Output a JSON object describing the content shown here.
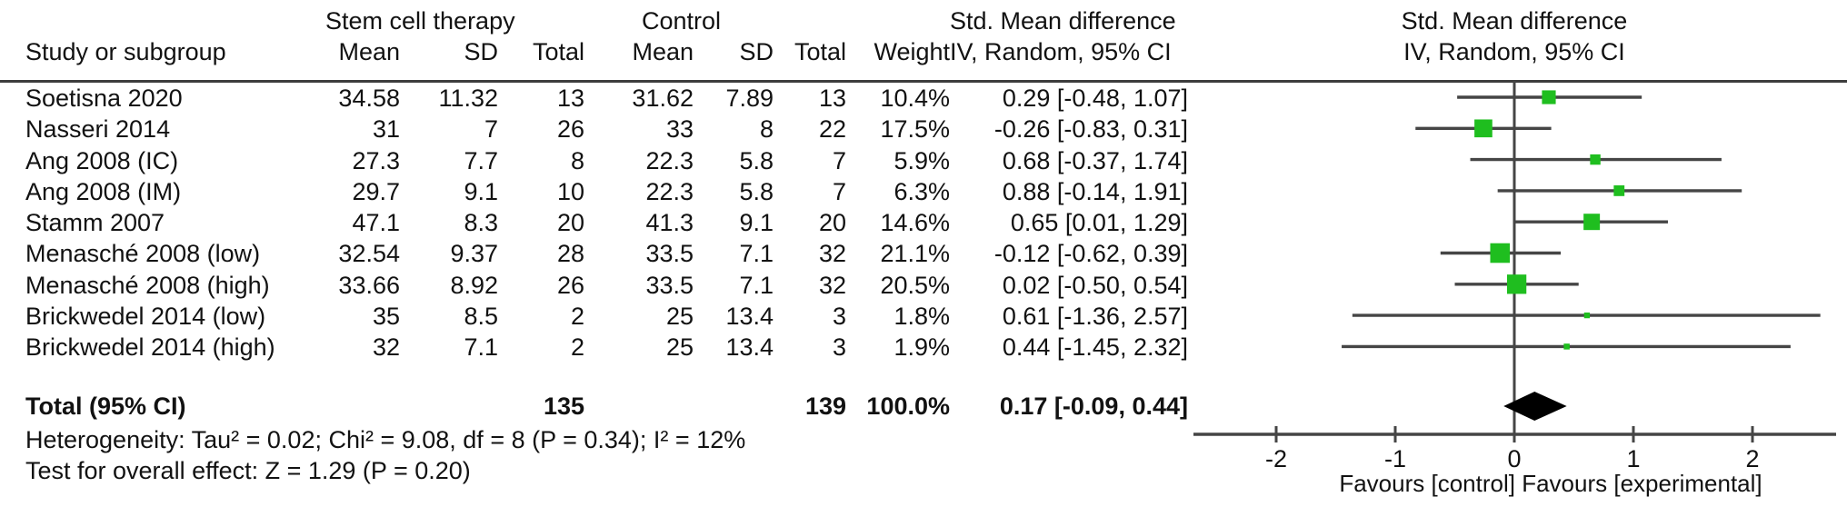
{
  "header": {
    "study_col": "Study or subgroup",
    "group1": "Stem cell therapy",
    "group2": "Control",
    "mean": "Mean",
    "sd": "SD",
    "total": "Total",
    "weight": "Weight",
    "effect_line1": "Std. Mean difference",
    "effect_line2": "IV, Random, 95% CI",
    "plot_line1": "Std. Mean difference",
    "plot_line2": "IV, Random, 95% CI"
  },
  "chart_data": {
    "type": "forest",
    "effect_measure": "Std. Mean difference",
    "model": "IV, Random, 95% CI",
    "xticks": [
      -2,
      -1,
      0,
      1,
      2
    ],
    "xlim": [
      -2.7,
      2.7
    ],
    "favours_label": "Favours [control]  Favours [experimental]",
    "marker_color": "#1fbe1f",
    "line_color": "#454545",
    "summary_color": "#000000",
    "studies": [
      {
        "name": "Soetisna 2020",
        "mean1": "34.58",
        "sd1": "11.32",
        "n1": "13",
        "mean2": "31.62",
        "sd2": "7.89",
        "n2": "13",
        "weight": "10.4%",
        "ci_text": "0.29 [-0.48, 1.07]",
        "effect": 0.29,
        "lo": -0.48,
        "hi": 1.07,
        "w": 10.4
      },
      {
        "name": "Nasseri 2014",
        "mean1": "31",
        "sd1": "7",
        "n1": "26",
        "mean2": "33",
        "sd2": "8",
        "n2": "22",
        "weight": "17.5%",
        "ci_text": "-0.26 [-0.83, 0.31]",
        "effect": -0.26,
        "lo": -0.83,
        "hi": 0.31,
        "w": 17.5
      },
      {
        "name": "Ang 2008 (IC)",
        "mean1": "27.3",
        "sd1": "7.7",
        "n1": "8",
        "mean2": "22.3",
        "sd2": "5.8",
        "n2": "7",
        "weight": "5.9%",
        "ci_text": "0.68 [-0.37, 1.74]",
        "effect": 0.68,
        "lo": -0.37,
        "hi": 1.74,
        "w": 5.9
      },
      {
        "name": "Ang 2008 (IM)",
        "mean1": "29.7",
        "sd1": "9.1",
        "n1": "10",
        "mean2": "22.3",
        "sd2": "5.8",
        "n2": "7",
        "weight": "6.3%",
        "ci_text": "0.88 [-0.14, 1.91]",
        "effect": 0.88,
        "lo": -0.14,
        "hi": 1.91,
        "w": 6.3
      },
      {
        "name": "Stamm 2007",
        "mean1": "47.1",
        "sd1": "8.3",
        "n1": "20",
        "mean2": "41.3",
        "sd2": "9.1",
        "n2": "20",
        "weight": "14.6%",
        "ci_text": "0.65 [0.01, 1.29]",
        "effect": 0.65,
        "lo": 0.01,
        "hi": 1.29,
        "w": 14.6
      },
      {
        "name": "Menasché 2008 (low)",
        "mean1": "32.54",
        "sd1": "9.37",
        "n1": "28",
        "mean2": "33.5",
        "sd2": "7.1",
        "n2": "32",
        "weight": "21.1%",
        "ci_text": "-0.12 [-0.62, 0.39]",
        "effect": -0.12,
        "lo": -0.62,
        "hi": 0.39,
        "w": 21.1
      },
      {
        "name": "Menasché 2008 (high)",
        "mean1": "33.66",
        "sd1": "8.92",
        "n1": "26",
        "mean2": "33.5",
        "sd2": "7.1",
        "n2": "32",
        "weight": "20.5%",
        "ci_text": "0.02 [-0.50, 0.54]",
        "effect": 0.02,
        "lo": -0.5,
        "hi": 0.54,
        "w": 20.5
      },
      {
        "name": "Brickwedel 2014 (low)",
        "mean1": "35",
        "sd1": "8.5",
        "n1": "2",
        "mean2": "25",
        "sd2": "13.4",
        "n2": "3",
        "weight": "1.8%",
        "ci_text": "0.61 [-1.36, 2.57]",
        "effect": 0.61,
        "lo": -1.36,
        "hi": 2.57,
        "w": 1.8
      },
      {
        "name": "Brickwedel 2014 (high)",
        "mean1": "32",
        "sd1": "7.1",
        "n1": "2",
        "mean2": "25",
        "sd2": "13.4",
        "n2": "3",
        "weight": "1.9%",
        "ci_text": "0.44 [-1.45, 2.32]",
        "effect": 0.44,
        "lo": -1.45,
        "hi": 2.32,
        "w": 1.9
      }
    ],
    "total": {
      "label": "Total (95% CI)",
      "n1": "135",
      "n2": "139",
      "weight": "100.0%",
      "ci_text": "0.17 [-0.09, 0.44]",
      "effect": 0.17,
      "lo": -0.09,
      "hi": 0.44
    }
  },
  "footer": {
    "heterogeneity": "Heterogeneity: Tau² = 0.02; Chi² = 9.08, df = 8 (P = 0.34); I² = 12%",
    "overall_effect": "Test for overall effect: Z = 1.29 (P = 0.20)"
  }
}
